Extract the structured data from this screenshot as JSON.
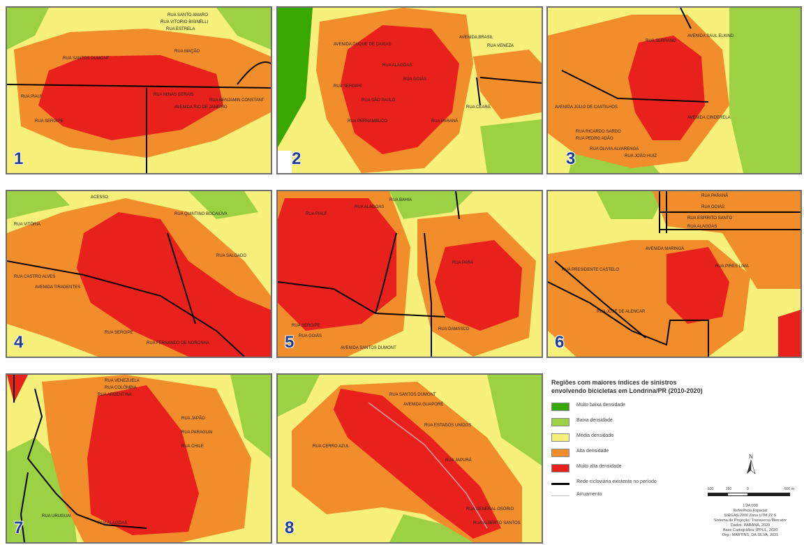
{
  "panels": [
    {
      "number": "1",
      "streets": [
        "RUA SANTO AMARO",
        "RUA VITORIO BISINELLI",
        "RUA ESTRELA",
        "RUA MAÇÃO",
        "RUA SANTOS DUMONT",
        "RUA PIAUÍ",
        "RUA SERGIPE",
        "RUA MINAS GERAIS",
        "RUA BENJAMIN CONSTANT",
        "AVENIDA RIO DE JANEIRO"
      ]
    },
    {
      "number": "2",
      "streets": [
        "AVENIDA DUQUE DE CAXIAS",
        "RUA SERGIPE",
        "RUA SÃO PAULO",
        "RUA ALAGOAS",
        "RUA GOIÁS",
        "AVENIDA BRASIL",
        "RUA VENEZA",
        "RUA PARANÁ",
        "RUA CEARÁ",
        "RUA PERNAMBUCO"
      ]
    },
    {
      "number": "3",
      "streets": [
        "AVENIDA SAUL ELKIND",
        "RUA SERRANO",
        "AVENIDA JÚLIO DE CASTILHOS",
        "RUA RICARDO SARDO",
        "RUA PEDRO ADÃO",
        "RUA JOÃO HUIZ",
        "AVENIDA CINDERELA",
        "RUA OLIVIA ALVARENGA"
      ]
    },
    {
      "number": "4",
      "streets": [
        "ACESSO",
        "RUA VITÓRIA",
        "RUA QUINTINO BOCAIÚVA",
        "RUA SALGADO",
        "AVENIDA TIRADENTES",
        "RUA SERGIPE",
        "RUA FERNANDO DE NORONHA",
        "RUA CASTRO ALVES"
      ]
    },
    {
      "number": "5",
      "streets": [
        "RUA PIAUÍ",
        "RUA ALAGOAS",
        "RUA SERGIPE",
        "RUA BAHIA",
        "RUA GOIÁS",
        "RUA DAMASCO",
        "AVENIDA SANTOS DUMONT",
        "RUA PARÁ"
      ]
    },
    {
      "number": "6",
      "streets": [
        "RUA PARANÁ",
        "RUA GOIÁS",
        "RUA ESPÍRITO SANTO",
        "RUA ALAGOAS",
        "AVENIDA MARINGÁ",
        "RUA PRESIDENTE CASTELO",
        "RUA PIRES LIMA",
        "RUA JOSÉ DE ALENCAR"
      ]
    },
    {
      "number": "7",
      "streets": [
        "RUA VENEZUELA",
        "RUA COLÔMBIA",
        "RUA ARGENTINA",
        "RUA PARAGUAI",
        "RUA URUGUAI",
        "RUA CHILE",
        "RUA JAPÃO",
        "RUA ALAGOAS"
      ]
    },
    {
      "number": "8",
      "streets": [
        "RUA SANTOS DUMONT",
        "AVENIDA GUAPORÉ",
        "RUA CERRO AZUL",
        "RUA ESTADOS UNIDOS",
        "RUA JAPURÁ",
        "RUA GENERAL OSÓRIO",
        "RUA ALBERTO SANTOS"
      ]
    }
  ],
  "legend": {
    "title_line1": "Regiões com maiores índices de sinistros",
    "title_line2": "envolvendo bicicletas em Londrina/PR (2010-2020)",
    "items": [
      {
        "label": "Muito baixa densidade",
        "color": "#38a800"
      },
      {
        "label": "Baixa densidade",
        "color": "#9bd143"
      },
      {
        "label": "Média densidade",
        "color": "#f7f07a"
      },
      {
        "label": "Alta densidade",
        "color": "#f28d2c"
      },
      {
        "label": "Muito alta densidade",
        "color": "#e8211c"
      }
    ],
    "lines": [
      {
        "label": "Rede cicloviária existente no período",
        "color": "#000000"
      },
      {
        "label": "Arruamento",
        "color": "#bdbdbd"
      }
    ],
    "north_label": "N",
    "scale_ticks": [
      "500",
      "250",
      "0",
      "500 m"
    ],
    "scale_ratio": "1:24.000",
    "credits": [
      "Referência Espacial",
      "SIRGAS 2000 Zona UTM 22 S",
      "Sistema de Projeção: Transversa Mercator",
      "Dados: PARANÁ, 2020",
      "Base Cartográfica: IPPUL, 2020",
      "Org.: MARTINS, DA SILVA, 2021"
    ]
  },
  "colors": {
    "very_low": "#38a800",
    "low": "#9bd143",
    "medium": "#f7f07a",
    "high": "#f28d2c",
    "very_high": "#e8211c",
    "panel_number": "#1f3d8c"
  }
}
